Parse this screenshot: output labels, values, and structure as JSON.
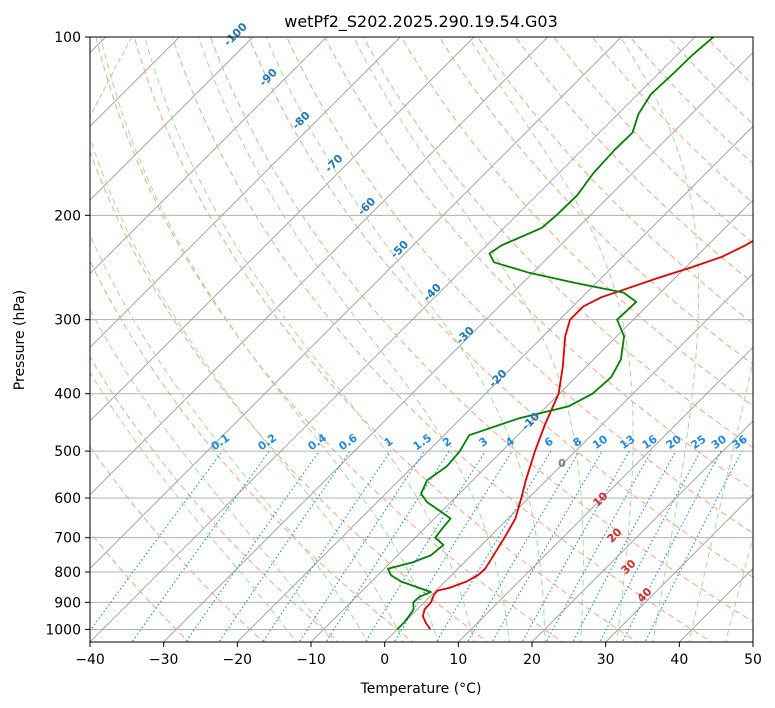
{
  "chart_data": {
    "type": "skew-t",
    "title": "wetPf2_S202.2025.290.19.54.G03",
    "xlabel": "Temperature (°C)",
    "ylabel": "Pressure (hPa)",
    "xlim": [
      -40,
      50
    ],
    "ylim": [
      1050,
      100
    ],
    "x_ticks": [
      -40,
      -30,
      -20,
      -10,
      0,
      10,
      20,
      30,
      40,
      50
    ],
    "x_tick_labels": [
      "−40",
      "−30",
      "−20",
      "−10",
      "0",
      "10",
      "20",
      "30",
      "40",
      "50"
    ],
    "y_ticks": [
      100,
      200,
      300,
      400,
      500,
      600,
      700,
      800,
      900,
      1000
    ],
    "y_tick_labels": [
      "100",
      "200",
      "300",
      "400",
      "500",
      "600",
      "700",
      "800",
      "900",
      "1000"
    ],
    "grid": true,
    "series": [
      {
        "name": "Temperature",
        "color": "#e00000",
        "points": [
          [
            1000,
            4.5
          ],
          [
            975,
            3.0
          ],
          [
            950,
            1.7
          ],
          [
            925,
            1.0
          ],
          [
            900,
            0.9
          ],
          [
            875,
            0.3
          ],
          [
            860,
            0.2
          ],
          [
            850,
            1.5
          ],
          [
            830,
            2.9
          ],
          [
            810,
            3.6
          ],
          [
            790,
            3.7
          ],
          [
            760,
            3.2
          ],
          [
            700,
            2.1
          ],
          [
            650,
            1.0
          ],
          [
            600,
            -1.0
          ],
          [
            560,
            -2.8
          ],
          [
            500,
            -5.5
          ],
          [
            450,
            -7.8
          ],
          [
            400,
            -10.1
          ],
          [
            360,
            -13.2
          ],
          [
            320,
            -17.0
          ],
          [
            300,
            -18.6
          ],
          [
            285,
            -18.6
          ],
          [
            275,
            -17.4
          ],
          [
            265,
            -14.9
          ],
          [
            255,
            -12.3
          ],
          [
            245,
            -9.3
          ],
          [
            235,
            -6.5
          ],
          [
            225,
            -4.9
          ],
          [
            200,
            -1.9
          ],
          [
            180,
            1.1
          ],
          [
            160,
            4.5
          ],
          [
            140,
            8.5
          ],
          [
            120,
            13.6
          ],
          [
            100,
            19.0
          ]
        ]
      },
      {
        "name": "Dewpoint",
        "color": "#008000",
        "points": [
          [
            1000,
            0.0
          ],
          [
            975,
            0.0
          ],
          [
            950,
            -0.2
          ],
          [
            925,
            -0.5
          ],
          [
            900,
            -1.5
          ],
          [
            880,
            -1.4
          ],
          [
            865,
            -0.5
          ],
          [
            850,
            -2.8
          ],
          [
            830,
            -6.0
          ],
          [
            810,
            -8.2
          ],
          [
            790,
            -9.5
          ],
          [
            770,
            -7.0
          ],
          [
            750,
            -5.5
          ],
          [
            720,
            -5.2
          ],
          [
            700,
            -7.3
          ],
          [
            675,
            -7.6
          ],
          [
            650,
            -7.8
          ],
          [
            630,
            -10.4
          ],
          [
            610,
            -13.2
          ],
          [
            590,
            -15.2
          ],
          [
            560,
            -16.2
          ],
          [
            530,
            -15.4
          ],
          [
            500,
            -15.7
          ],
          [
            470,
            -16.6
          ],
          [
            440,
            -12.1
          ],
          [
            420,
            -7.0
          ],
          [
            400,
            -5.5
          ],
          [
            375,
            -5.2
          ],
          [
            350,
            -6.3
          ],
          [
            320,
            -9.0
          ],
          [
            300,
            -12.2
          ],
          [
            280,
            -12.0
          ],
          [
            270,
            -15.0
          ],
          [
            260,
            -23.0
          ],
          [
            250,
            -30.5
          ],
          [
            240,
            -36.7
          ],
          [
            232,
            -38.5
          ],
          [
            225,
            -38.0
          ],
          [
            210,
            -34.9
          ],
          [
            200,
            -34.6
          ],
          [
            185,
            -34.5
          ],
          [
            170,
            -35.3
          ],
          [
            155,
            -35.6
          ],
          [
            145,
            -35.5
          ],
          [
            135,
            -37.2
          ],
          [
            125,
            -38.2
          ],
          [
            115,
            -38.0
          ],
          [
            107,
            -37.9
          ],
          [
            100,
            -37.5
          ]
        ]
      }
    ],
    "dry_adiabats_label": [
      {
        "text": "-100",
        "t": -100
      },
      {
        "text": "-90",
        "t": -90
      },
      {
        "text": "-80",
        "t": -80
      },
      {
        "text": "-70",
        "t": -70
      },
      {
        "text": "-60",
        "t": -60
      },
      {
        "text": "-50",
        "t": -50
      },
      {
        "text": "-40",
        "t": -40
      },
      {
        "text": "-30",
        "t": -30
      },
      {
        "text": "-20",
        "t": -20
      },
      {
        "text": "-10",
        "t": -10
      },
      {
        "text": "0",
        "t": 0
      }
    ],
    "moist_adiabat_labels": [
      "10",
      "20",
      "30",
      "40"
    ],
    "mixing_ratio_labels": [
      "0.1",
      "0.2",
      "0.4",
      "0.6",
      "1",
      "1.5",
      "2",
      "3",
      "4",
      "6",
      "8",
      "10",
      "13",
      "16",
      "20",
      "25",
      "30",
      "36"
    ],
    "mixing_ratios": [
      0.1,
      0.2,
      0.4,
      0.6,
      1,
      1.5,
      2,
      3,
      4,
      6,
      8,
      10,
      13,
      16,
      20,
      25,
      30,
      36
    ],
    "colors": {
      "grid": "#b0b0b0",
      "isotherm": "#9a9a9a",
      "dry_adiabat": "#f4a582",
      "moist_adiabat": "#a6d8a0",
      "mixing_ratio": "#1e88e5",
      "background_curve": "#d8c4a8"
    }
  }
}
